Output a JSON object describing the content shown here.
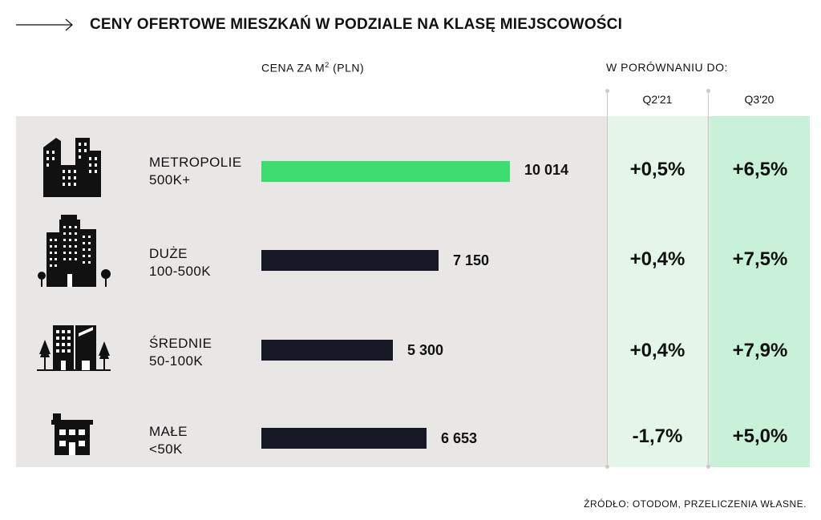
{
  "title": "CENY OFERTOWE MIESZKAŃ W PODZIALE NA KLASĘ MIEJSCOWOŚCI",
  "price_header": "CENA ZA M",
  "price_header_sup": "2",
  "price_header_unit": " (PLN)",
  "compare_header": "W PORÓWNANIU DO:",
  "q_header_1": "Q2'21",
  "q_header_2": "Q3'20",
  "source": "ŹRÓDŁO: OTODOM, PRZELICZENIA WŁASNE.",
  "colors": {
    "highlight": "#3ddc6f",
    "bar": "#161826",
    "band": "#e9e7e6",
    "col1": "#e3f6e9",
    "col2": "#c9f1d7"
  },
  "chart_data": {
    "type": "bar",
    "orientation": "horizontal",
    "categories": [
      "METROPOLIE 500K+",
      "DUŻE 100-500K",
      "ŚREDNIE 50-100K",
      "MAŁE <50K"
    ],
    "values": [
      10014,
      7150,
      5300,
      6653
    ],
    "title": "CENY OFERTOWE MIESZKAŃ W PODZIALE NA KLASĘ MIEJSCOWOŚCI",
    "xlabel": "CENA ZA M2 (PLN)",
    "ylabel": "",
    "grid": false,
    "rows": [
      {
        "name": "METROPOLIE",
        "sub": "500K+",
        "value": 10014,
        "value_label": "10 014",
        "q2_21": "+0,5%",
        "q3_20": "+6,5%",
        "highlight": true,
        "icon": "skyscrapers-icon"
      },
      {
        "name": "DUŻE",
        "sub": "100-500K",
        "value": 7150,
        "value_label": "7 150",
        "q2_21": "+0,4%",
        "q3_20": "+7,5%",
        "highlight": false,
        "icon": "apartment-blocks-icon"
      },
      {
        "name": "ŚREDNIE",
        "sub": "50-100K",
        "value": 5300,
        "value_label": "5 300",
        "q2_21": "+0,4%",
        "q3_20": "+7,9%",
        "highlight": false,
        "icon": "town-buildings-icon"
      },
      {
        "name": "MAŁE",
        "sub": "<50K",
        "value": 6653,
        "value_label": "6 653",
        "q2_21": "-1,7%",
        "q3_20": "+5,0%",
        "highlight": false,
        "icon": "small-house-icon"
      }
    ]
  }
}
